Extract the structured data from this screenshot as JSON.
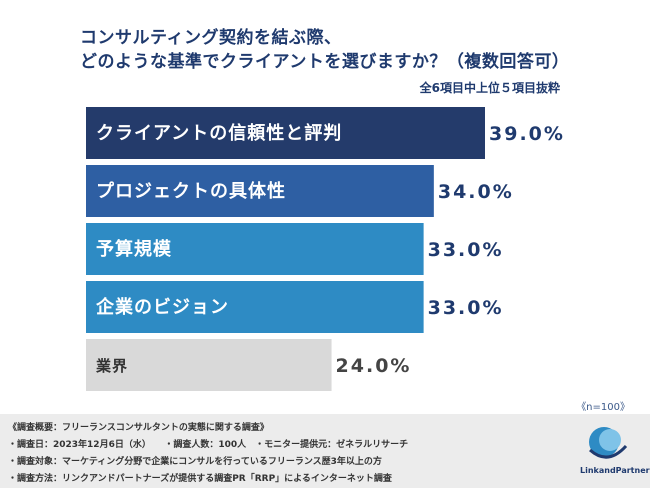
{
  "title_line1": "コンサルティング契約を結ぶ際、",
  "title_line2": "どのような基準でクライアントを選びますか？（複数回答可）",
  "subtitle": "全6項目中上位５項目抜粋",
  "n_note": "《n=100》",
  "chart_data": {
    "type": "bar",
    "orientation": "horizontal",
    "title": "コンサルティング契約を結ぶ際、どのような基準でクライアントを選びますか？（複数回答可）",
    "categories": [
      "クライアントの信頼性と評判",
      "プロジェクトの具体性",
      "予算規模",
      "企業のビジョン",
      "業界"
    ],
    "values": [
      39.0,
      34.0,
      33.0,
      33.0,
      24.0
    ],
    "value_labels": [
      "39.0%",
      "34.0%",
      "33.0%",
      "33.0%",
      "24.0%"
    ],
    "colors": [
      "#243b6b",
      "#2e5fa3",
      "#2e8bc4",
      "#2e8bc4",
      "#d9d9d9"
    ],
    "xlim": [
      0,
      50
    ],
    "grid": false,
    "legend": "none"
  },
  "footer": {
    "line1": "《調査概要：フリーランスコンサルタントの実態に関する調査》",
    "line2": "・調査日：2023年12月6日（水）　　・調査人数：100人　・モニター提供元：ゼネラルリサーチ",
    "line3": "・調査対象：マーケティング分野で企業にコンサルを行っているフリーランス歴3年以上の方",
    "line4": "・調査方法：リンクアンドパートナーズが提供する調査PR「RRP」によるインターネット調査"
  },
  "logo": {
    "text": "LinkandPartners"
  }
}
